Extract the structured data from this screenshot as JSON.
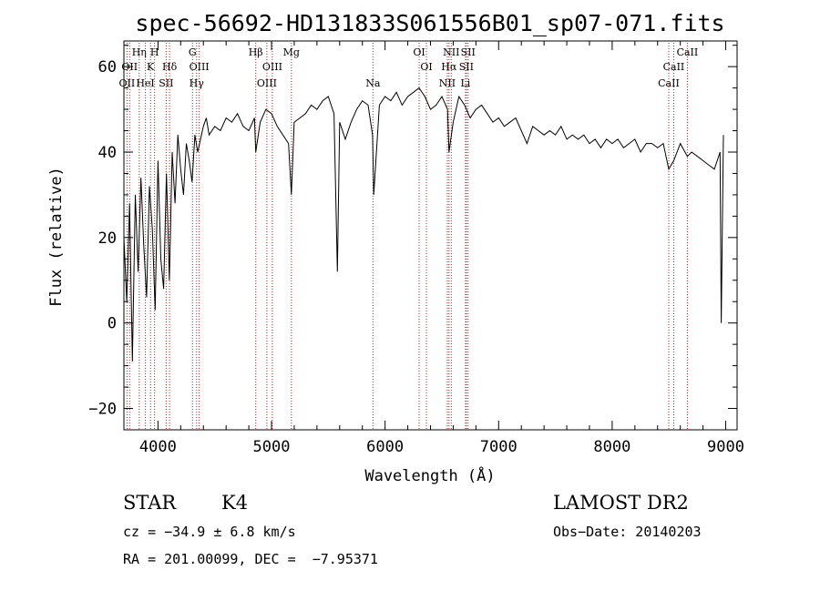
{
  "chart_data": {
    "type": "line",
    "title": "spec-56692-HD131833S061556B01_sp07-071.fits",
    "xlabel": "Wavelength (Å)",
    "ylabel": "Flux (relative)",
    "xlim": [
      3700,
      9100
    ],
    "ylim": [
      -25,
      66
    ],
    "xticks": [
      4000,
      5000,
      6000,
      7000,
      8000,
      9000
    ],
    "yticks": [
      -20,
      0,
      20,
      40,
      60
    ],
    "grid": false,
    "series": [
      {
        "x": [
          3700,
          3725,
          3750,
          3775,
          3800,
          3825,
          3850,
          3875,
          3900,
          3925,
          3950,
          3975,
          4000,
          4025,
          4050,
          4075,
          4100,
          4125,
          4150,
          4175,
          4200,
          4225,
          4250,
          4275,
          4300,
          4325,
          4350,
          4375,
          4400,
          4425,
          4450,
          4500,
          4550,
          4600,
          4650,
          4700,
          4750,
          4800,
          4850,
          4861,
          4900,
          4950,
          5000,
          5050,
          5100,
          5150,
          5175,
          5200,
          5250,
          5300,
          5350,
          5400,
          5450,
          5500,
          5550,
          5580,
          5600,
          5650,
          5700,
          5750,
          5800,
          5850,
          5890,
          5900,
          5950,
          6000,
          6050,
          6100,
          6150,
          6200,
          6250,
          6300,
          6350,
          6400,
          6450,
          6500,
          6550,
          6563,
          6600,
          6650,
          6700,
          6750,
          6800,
          6850,
          6900,
          6950,
          7000,
          7050,
          7100,
          7150,
          7200,
          7250,
          7300,
          7350,
          7400,
          7450,
          7500,
          7550,
          7600,
          7650,
          7700,
          7750,
          7800,
          7850,
          7900,
          7950,
          8000,
          8050,
          8100,
          8150,
          8200,
          8250,
          8300,
          8350,
          8400,
          8450,
          8498,
          8542,
          8600,
          8662,
          8700,
          8750,
          8800,
          8850,
          8900,
          8950,
          8960,
          8980
        ],
        "y": [
          20,
          5,
          28,
          -9,
          30,
          12,
          34,
          18,
          6,
          32,
          22,
          3,
          38,
          15,
          8,
          35,
          10,
          40,
          28,
          44,
          36,
          30,
          42,
          38,
          33,
          44,
          40,
          43,
          46,
          48,
          44,
          46,
          45,
          48,
          47,
          49,
          46,
          45,
          48,
          40,
          47,
          50,
          49,
          46,
          44,
          42,
          30,
          47,
          48,
          49,
          51,
          50,
          52,
          53,
          49,
          12,
          47,
          43,
          47,
          50,
          52,
          51,
          44,
          30,
          51,
          53,
          52,
          54,
          51,
          53,
          54,
          55,
          53,
          50,
          51,
          53,
          50,
          40,
          47,
          53,
          51,
          48,
          50,
          51,
          49,
          47,
          48,
          46,
          47,
          48,
          45,
          42,
          46,
          45,
          44,
          45,
          44,
          46,
          43,
          44,
          43,
          44,
          42,
          43,
          41,
          43,
          42,
          43,
          41,
          42,
          43,
          40,
          42,
          42,
          41,
          42,
          36,
          38,
          42,
          39,
          40,
          39,
          38,
          37,
          36,
          40,
          0,
          44
        ]
      }
    ],
    "line_markers": [
      {
        "w": 3727,
        "name": "OII",
        "row": 3
      },
      {
        "w": 3750,
        "name": "OII",
        "row": 2
      },
      {
        "w": 3835,
        "name": "Hη",
        "row": 1
      },
      {
        "w": 3889,
        "name": "HeI",
        "row": 3
      },
      {
        "w": 3934,
        "name": "K",
        "row": 2
      },
      {
        "w": 3970,
        "name": "H",
        "row": 1
      },
      {
        "w": 4072,
        "name": "SII",
        "row": 3
      },
      {
        "w": 4102,
        "name": "Hδ",
        "row": 2
      },
      {
        "w": 4304,
        "name": "G",
        "row": 1
      },
      {
        "w": 4340,
        "name": "Hγ",
        "row": 3
      },
      {
        "w": 4363,
        "name": "OIII",
        "row": 2
      },
      {
        "w": 4861,
        "name": "Hβ",
        "row": 1
      },
      {
        "w": 4959,
        "name": "OIII",
        "row": 3
      },
      {
        "w": 5007,
        "name": "OIII",
        "row": 2
      },
      {
        "w": 5175,
        "name": "Mg",
        "row": 1
      },
      {
        "w": 5893,
        "name": "Na",
        "row": 3
      },
      {
        "w": 6300,
        "name": "OI",
        "row": 1
      },
      {
        "w": 6364,
        "name": "OI",
        "row": 2
      },
      {
        "w": 6548,
        "name": "NII",
        "row": 3
      },
      {
        "w": 6563,
        "name": "Hα",
        "row": 2
      },
      {
        "w": 6583,
        "name": "NII",
        "row": 1
      },
      {
        "w": 6708,
        "name": "Li",
        "row": 3
      },
      {
        "w": 6716,
        "name": "SII",
        "row": 2
      },
      {
        "w": 6731,
        "name": "SII",
        "row": 1
      },
      {
        "w": 8498,
        "name": "CaII",
        "row": 3
      },
      {
        "w": 8542,
        "name": "CaII",
        "row": 2
      },
      {
        "w": 8662,
        "name": "CaII",
        "row": 1
      }
    ],
    "line_color": "#b22222"
  },
  "info": {
    "class": "STAR",
    "subclass": "K4",
    "survey": "LAMOST DR2",
    "cz": "cz = −34.9 ± 6.8 km/s",
    "obs_date": "Obs−Date: 20140203",
    "radec": "RA = 201.00099, DEC =  −7.95371"
  }
}
